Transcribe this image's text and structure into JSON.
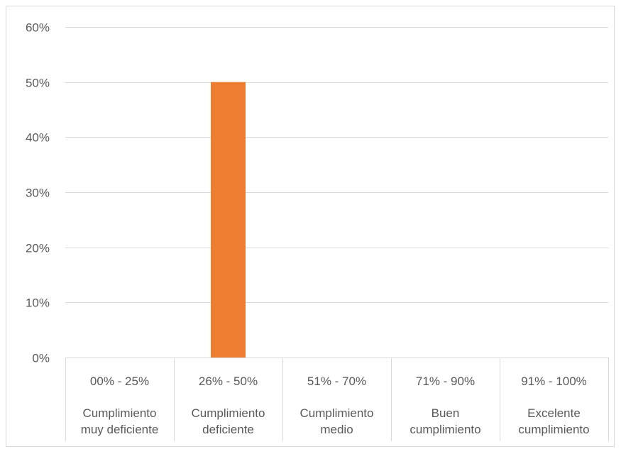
{
  "chart_data": {
    "type": "bar",
    "categories": [
      {
        "range": "00% - 25%",
        "label": [
          "Cumplimiento",
          "muy deficiente"
        ]
      },
      {
        "range": "26% - 50%",
        "label": [
          "Cumplimiento",
          "deficiente"
        ]
      },
      {
        "range": "51% - 70%",
        "label": [
          "Cumplimiento",
          "medio"
        ]
      },
      {
        "range": "71% - 90%",
        "label": [
          "Buen",
          "cumplimiento"
        ]
      },
      {
        "range": "91% - 100%",
        "label": [
          "Excelente",
          "cumplimiento"
        ]
      }
    ],
    "values": [
      0,
      50,
      0,
      0,
      0
    ],
    "y_ticks": [
      "0%",
      "10%",
      "20%",
      "30%",
      "40%",
      "50%",
      "60%"
    ],
    "ylim": [
      0,
      60
    ],
    "grid": true,
    "legend": "none",
    "bar_color": "#ED7D31",
    "grid_color": "#d9d9d9",
    "text_color": "#595959",
    "title": "",
    "xlabel": "",
    "ylabel": ""
  }
}
